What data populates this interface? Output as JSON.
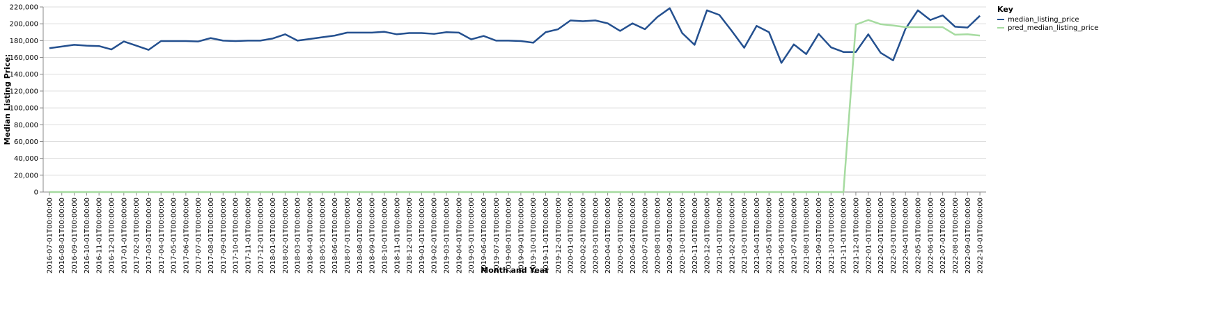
{
  "chart_data": {
    "type": "line",
    "x_label": "Month and Year",
    "y_label": "Median Listing Price:",
    "legend_title": "Key",
    "legend_position": "right",
    "grid": true,
    "categories": [
      "2016-07-01T00:00:00",
      "2016-08-01T00:00:00",
      "2016-09-01T00:00:00",
      "2016-10-01T00:00:00",
      "2016-11-01T00:00:00",
      "2016-12-01T00:00:00",
      "2017-01-01T00:00:00",
      "2017-02-01T00:00:00",
      "2017-03-01T00:00:00",
      "2017-04-01T00:00:00",
      "2017-05-01T00:00:00",
      "2017-06-01T00:00:00",
      "2017-07-01T00:00:00",
      "2017-08-01T00:00:00",
      "2017-09-01T00:00:00",
      "2017-10-01T00:00:00",
      "2017-11-01T00:00:00",
      "2017-12-01T00:00:00",
      "2018-01-01T00:00:00",
      "2018-02-01T00:00:00",
      "2018-03-01T00:00:00",
      "2018-04-01T00:00:00",
      "2018-05-01T00:00:00",
      "2018-06-01T00:00:00",
      "2018-07-01T00:00:00",
      "2018-08-01T00:00:00",
      "2018-09-01T00:00:00",
      "2018-10-01T00:00:00",
      "2018-11-01T00:00:00",
      "2018-12-01T00:00:00",
      "2019-01-01T00:00:00",
      "2019-02-01T00:00:00",
      "2019-03-01T00:00:00",
      "2019-04-01T00:00:00",
      "2019-05-01T00:00:00",
      "2019-06-01T00:00:00",
      "2019-07-01T00:00:00",
      "2019-08-01T00:00:00",
      "2019-09-01T00:00:00",
      "2019-10-01T00:00:00",
      "2019-11-01T00:00:00",
      "2019-12-01T00:00:00",
      "2020-01-01T00:00:00",
      "2020-02-01T00:00:00",
      "2020-03-01T00:00:00",
      "2020-04-01T00:00:00",
      "2020-05-01T00:00:00",
      "2020-06-01T00:00:00",
      "2020-07-01T00:00:00",
      "2020-08-01T00:00:00",
      "2020-09-01T00:00:00",
      "2020-10-01T00:00:00",
      "2020-11-01T00:00:00",
      "2020-12-01T00:00:00",
      "2021-01-01T00:00:00",
      "2021-02-01T00:00:00",
      "2021-03-01T00:00:00",
      "2021-04-01T00:00:00",
      "2021-05-01T00:00:00",
      "2021-06-01T00:00:00",
      "2021-07-01T00:00:00",
      "2021-08-01T00:00:00",
      "2021-09-01T00:00:00",
      "2021-10-01T00:00:00",
      "2021-11-01T00:00:00",
      "2021-12-01T00:00:00",
      "2022-01-01T00:00:00",
      "2022-02-01T00:00:00",
      "2022-03-01T00:00:00",
      "2022-04-01T00:00:00",
      "2022-05-01T00:00:00",
      "2022-06-01T00:00:00",
      "2022-07-01T00:00:00",
      "2022-08-01T00:00:00",
      "2022-09-01T00:00:00",
      "2022-10-01T00:00:00"
    ],
    "series": [
      {
        "name": "median_listing_price",
        "color": "#24508f",
        "values": [
          171000,
          173000,
          175000,
          174000,
          173500,
          169500,
          179000,
          174000,
          169000,
          179500,
          179500,
          179500,
          179000,
          183000,
          180000,
          179500,
          180000,
          180000,
          182500,
          187500,
          180000,
          182000,
          184000,
          186000,
          189500,
          189500,
          189500,
          190500,
          187500,
          189000,
          189000,
          188000,
          190000,
          189500,
          181500,
          185500,
          180000,
          180000,
          179500,
          177500,
          190000,
          193500,
          204000,
          203000,
          204000,
          200500,
          191500,
          200500,
          193500,
          208000,
          218500,
          189000,
          175000,
          216000,
          210500,
          191500,
          171500,
          197500,
          190000,
          153500,
          175500,
          164000,
          188000,
          172000,
          166500,
          166500,
          187500,
          165500,
          156500,
          194000,
          216000,
          204500,
          210000,
          196500,
          195500,
          209500
        ]
      },
      {
        "name": "pred_median_listing_price",
        "color": "#a6dba0",
        "values": [
          0,
          0,
          0,
          0,
          0,
          0,
          0,
          0,
          0,
          0,
          0,
          0,
          0,
          0,
          0,
          0,
          0,
          0,
          0,
          0,
          0,
          0,
          0,
          0,
          0,
          0,
          0,
          0,
          0,
          0,
          0,
          0,
          0,
          0,
          0,
          0,
          0,
          0,
          0,
          0,
          0,
          0,
          0,
          0,
          0,
          0,
          0,
          0,
          0,
          0,
          0,
          0,
          0,
          0,
          0,
          0,
          0,
          0,
          0,
          0,
          0,
          0,
          0,
          0,
          0,
          199000,
          204500,
          199500,
          198000,
          196000,
          196000,
          196000,
          196000,
          187000,
          187500,
          186000
        ]
      }
    ],
    "ylim": [
      0,
      220000
    ],
    "yticks": [
      0,
      {
        "value": 20000,
        "label": "20,000"
      },
      {
        "value": 40000,
        "label": "40,000"
      },
      {
        "value": 60000,
        "label": "60,000"
      },
      {
        "value": 80000,
        "label": "80,000"
      },
      {
        "value": 100000,
        "label": "100,000"
      },
      {
        "value": 120000,
        "label": "120,000"
      },
      {
        "value": 140000,
        "label": "140,000"
      },
      {
        "value": 160000,
        "label": "160,000"
      },
      {
        "value": 180000,
        "label": "180,000"
      },
      {
        "value": 200000,
        "label": "200,000"
      },
      {
        "value": 220000,
        "label": "220,000"
      }
    ]
  }
}
